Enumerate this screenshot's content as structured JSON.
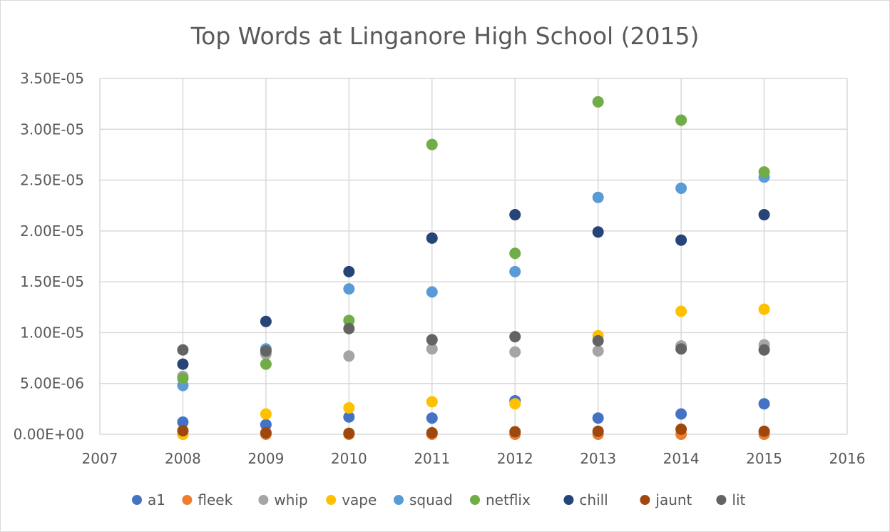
{
  "chart_data": {
    "type": "scatter",
    "title": "Top Words at Linganore High School (2015)",
    "xlabel": "",
    "ylabel": "",
    "xlim": [
      2007,
      2016
    ],
    "ylim": [
      0,
      3.5e-05
    ],
    "x_ticks": [
      "2007",
      "2008",
      "2009",
      "2010",
      "2011",
      "2012",
      "2013",
      "2014",
      "2015",
      "2016"
    ],
    "y_ticks": [
      "0.00E+00",
      "5.00E-06",
      "1.00E-05",
      "1.50E-05",
      "2.00E-05",
      "2.50E-05",
      "3.00E-05",
      "3.50E-05"
    ],
    "grid": true,
    "legend_position": "bottom",
    "series": [
      {
        "name": "a1",
        "color": "#4472C4",
        "x": [
          2008,
          2009,
          2010,
          2011,
          2012,
          2013,
          2014,
          2015
        ],
        "y": [
          1.2e-06,
          9.5e-07,
          1.7e-06,
          1.6e-06,
          3.3e-06,
          1.6e-06,
          2e-06,
          3e-06
        ]
      },
      {
        "name": "fleek",
        "color": "#ED7D31",
        "x": [
          2008,
          2009,
          2010,
          2011,
          2012,
          2013,
          2014,
          2015
        ],
        "y": [
          0,
          0,
          0,
          0,
          0,
          0,
          0,
          0
        ]
      },
      {
        "name": "whip",
        "color": "#A5A5A5",
        "x": [
          2008,
          2009,
          2010,
          2011,
          2012,
          2013,
          2014,
          2015
        ],
        "y": [
          5.7e-06,
          7.9e-06,
          7.7e-06,
          8.4e-06,
          8.1e-06,
          8.2e-06,
          8.7e-06,
          8.8e-06
        ]
      },
      {
        "name": "vape",
        "color": "#FFC000",
        "x": [
          2008,
          2009,
          2010,
          2011,
          2012,
          2013,
          2014,
          2015
        ],
        "y": [
          0,
          2e-06,
          2.6e-06,
          3.2e-06,
          3e-06,
          9.7e-06,
          1.21e-05,
          1.23e-05
        ]
      },
      {
        "name": "squad",
        "color": "#5B9BD5",
        "x": [
          2008,
          2009,
          2010,
          2011,
          2012,
          2013,
          2014,
          2015
        ],
        "y": [
          4.8e-06,
          8.4e-06,
          1.43e-05,
          1.4e-05,
          1.6e-05,
          2.33e-05,
          2.42e-05,
          2.53e-05
        ]
      },
      {
        "name": "netflix",
        "color": "#70AD47",
        "x": [
          2008,
          2009,
          2010,
          2011,
          2012,
          2013,
          2014,
          2015
        ],
        "y": [
          5.5e-06,
          6.9e-06,
          1.12e-05,
          2.85e-05,
          1.78e-05,
          3.27e-05,
          3.09e-05,
          2.58e-05
        ]
      },
      {
        "name": "chill",
        "color": "#264478",
        "x": [
          2008,
          2009,
          2010,
          2011,
          2012,
          2013,
          2014,
          2015
        ],
        "y": [
          6.9e-06,
          1.11e-05,
          1.6e-05,
          1.93e-05,
          2.16e-05,
          1.99e-05,
          1.91e-05,
          2.16e-05
        ]
      },
      {
        "name": "jaunt",
        "color": "#9E480E",
        "x": [
          2008,
          2009,
          2010,
          2011,
          2012,
          2013,
          2014,
          2015
        ],
        "y": [
          3.5e-07,
          1.5e-07,
          1e-07,
          1.5e-07,
          2.5e-07,
          3e-07,
          5e-07,
          3e-07
        ]
      },
      {
        "name": "lit",
        "color": "#636363",
        "x": [
          2008,
          2009,
          2010,
          2011,
          2012,
          2013,
          2014,
          2015
        ],
        "y": [
          8.3e-06,
          8.2e-06,
          1.04e-05,
          9.3e-06,
          9.6e-06,
          9.2e-06,
          8.4e-06,
          8.3e-06
        ]
      }
    ]
  }
}
